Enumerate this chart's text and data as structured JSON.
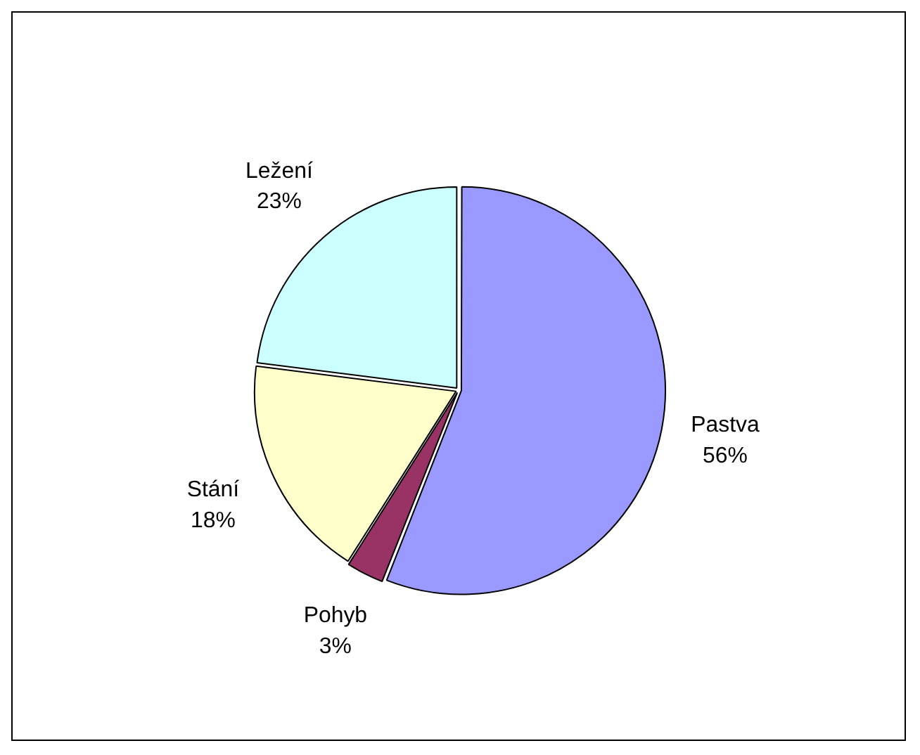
{
  "chart_data": {
    "type": "pie",
    "categories": [
      "Pastva",
      "Pohyb",
      "Stání",
      "Ležení"
    ],
    "values": [
      56,
      3,
      18,
      23
    ],
    "colors": [
      "#9999ff",
      "#993366",
      "#ffffcc",
      "#ccffff"
    ],
    "value_labels": [
      "56%",
      "3%",
      "18%",
      "23%"
    ],
    "legend": false
  }
}
